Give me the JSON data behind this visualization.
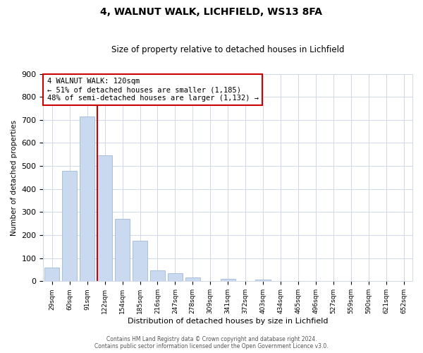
{
  "title": "4, WALNUT WALK, LICHFIELD, WS13 8FA",
  "subtitle": "Size of property relative to detached houses in Lichfield",
  "xlabel": "Distribution of detached houses by size in Lichfield",
  "ylabel": "Number of detached properties",
  "bar_labels": [
    "29sqm",
    "60sqm",
    "91sqm",
    "122sqm",
    "154sqm",
    "185sqm",
    "216sqm",
    "247sqm",
    "278sqm",
    "309sqm",
    "341sqm",
    "372sqm",
    "403sqm",
    "434sqm",
    "465sqm",
    "496sqm",
    "527sqm",
    "559sqm",
    "590sqm",
    "621sqm",
    "652sqm"
  ],
  "bar_heights": [
    60,
    480,
    715,
    545,
    270,
    175,
    48,
    35,
    15,
    0,
    10,
    0,
    8,
    0,
    0,
    0,
    0,
    0,
    0,
    0,
    0
  ],
  "bar_color": "#c9d9f0",
  "bar_edge_color": "#a0b8d8",
  "vline_x": 2.575,
  "vline_color": "#cc0000",
  "annotation_text": "4 WALNUT WALK: 120sqm\n← 51% of detached houses are smaller (1,185)\n48% of semi-detached houses are larger (1,132) →",
  "annotation_box_color": "#ffffff",
  "annotation_box_edge_color": "#cc0000",
  "ylim": [
    0,
    900
  ],
  "yticks": [
    0,
    100,
    200,
    300,
    400,
    500,
    600,
    700,
    800,
    900
  ],
  "footer_line1": "Contains HM Land Registry data © Crown copyright and database right 2024.",
  "footer_line2": "Contains public sector information licensed under the Open Government Licence v3.0.",
  "background_color": "#ffffff",
  "grid_color": "#d0d8e8"
}
